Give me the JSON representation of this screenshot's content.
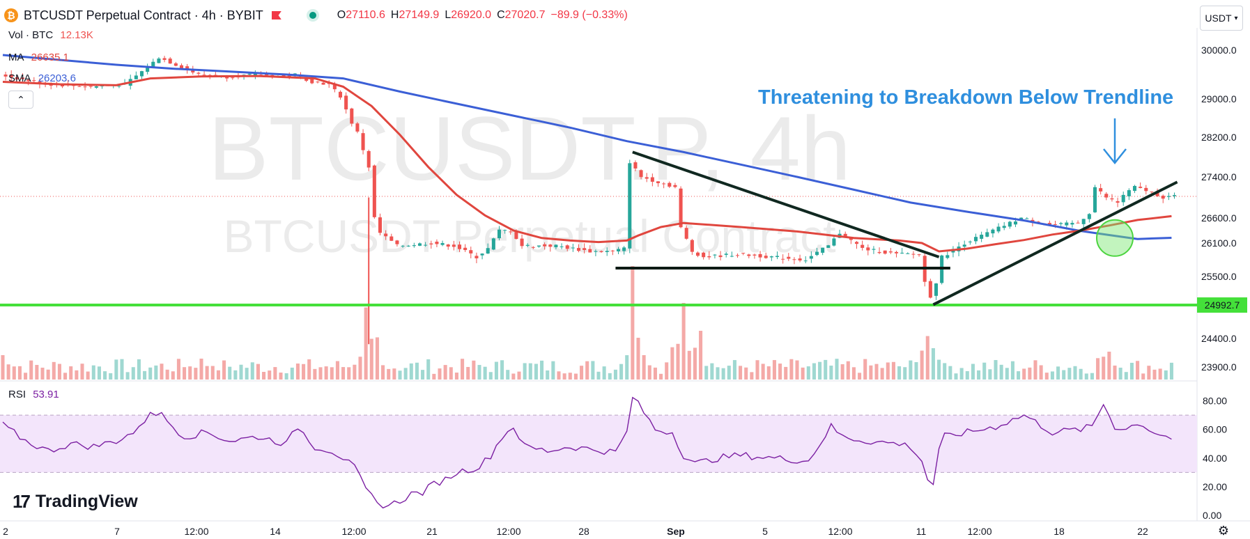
{
  "header": {
    "symbol_icon": "bitcoin-icon",
    "title": "BTCUSDT Perpetual Contract · 4h · BYBIT",
    "ohlc": [
      {
        "k": "O",
        "v": "27110.6"
      },
      {
        "k": "H",
        "v": "27149.9"
      },
      {
        "k": "L",
        "v": "26920.0"
      },
      {
        "k": "C",
        "v": "27020.7"
      },
      {
        "k": "",
        "v": "−89.9 (−0.33%)"
      }
    ]
  },
  "legend": {
    "vol_label": "Vol · BTC",
    "vol_value": "12.13K",
    "ma_label": "MA",
    "ma_value": "26635.1",
    "sma_label": "SMA",
    "sma_value": "26203.6",
    "collapse_icon": "chevron-up-icon"
  },
  "currency_button": "USDT",
  "watermark": {
    "line1": "BTCUSDT.P, 4h",
    "line2": "BTCUSDT Perpetual Contract"
  },
  "annotation": "Threatening to Breakdown Below Trendline",
  "rsi": {
    "label": "RSI",
    "value": "53.91"
  },
  "branding": {
    "logo": "TradingView",
    "mark": "17"
  },
  "settings_icon": "gear-icon",
  "colors": {
    "up": "#26a69a",
    "down": "#ef5350",
    "ma": "#e0463e",
    "sma": "#3b5fd6",
    "support": "#44e03a",
    "rsi": "#7b1fa2",
    "annotation": "#2f8fde",
    "trendline": "#102820"
  },
  "chart_data": {
    "type": "candlestick",
    "price_axis": {
      "min": 23900,
      "max": 30000,
      "ticks": [
        30000.0,
        29000.0,
        28200.0,
        27400.0,
        26600.0,
        26100.0,
        25500.0,
        24400.0,
        23900.0
      ]
    },
    "price_tick_labels": [
      "30000.0",
      "29000.0",
      "28200.0",
      "27400.0",
      "26600.0",
      "26100.0",
      "25500.0",
      "24400.0",
      "23900.0"
    ],
    "x_tick_labels": [
      "2",
      "7",
      "12:00",
      "14",
      "12:00",
      "21",
      "12:00",
      "28",
      "Sep",
      "5",
      "12:00",
      "11",
      "12:00",
      "18",
      "22"
    ],
    "price_path": [
      [
        0,
        29500
      ],
      [
        8,
        29300
      ],
      [
        16,
        29250
      ],
      [
        22,
        29300
      ],
      [
        26,
        29650
      ],
      [
        28,
        29850
      ],
      [
        31,
        29700
      ],
      [
        35,
        29500
      ],
      [
        40,
        29450
      ],
      [
        45,
        29500
      ],
      [
        50,
        29450
      ],
      [
        52,
        29500
      ],
      [
        55,
        29350
      ],
      [
        58,
        29300
      ],
      [
        60,
        29050
      ],
      [
        62,
        28500
      ],
      [
        63,
        28300
      ],
      [
        65,
        27600
      ],
      [
        66,
        26600
      ],
      [
        67,
        26300
      ],
      [
        70,
        26050
      ],
      [
        76,
        26100
      ],
      [
        80,
        26050
      ],
      [
        84,
        25850
      ],
      [
        86,
        26000
      ],
      [
        88,
        26350
      ],
      [
        90,
        26350
      ],
      [
        92,
        26050
      ],
      [
        98,
        26050
      ],
      [
        104,
        25950
      ],
      [
        108,
        25950
      ],
      [
        110,
        26000
      ],
      [
        111,
        27700
      ],
      [
        113,
        27400
      ],
      [
        116,
        27300
      ],
      [
        119,
        27200
      ],
      [
        120,
        26400
      ],
      [
        122,
        25950
      ],
      [
        124,
        25850
      ],
      [
        130,
        25900
      ],
      [
        136,
        25850
      ],
      [
        142,
        25800
      ],
      [
        146,
        26050
      ],
      [
        148,
        26300
      ],
      [
        152,
        26000
      ],
      [
        158,
        25900
      ],
      [
        162,
        25900
      ],
      [
        163,
        25400
      ],
      [
        164,
        25150
      ],
      [
        165,
        25400
      ],
      [
        166,
        25850
      ],
      [
        170,
        26100
      ],
      [
        175,
        26350
      ],
      [
        180,
        26600
      ],
      [
        185,
        26450
      ],
      [
        190,
        26500
      ],
      [
        192,
        26700
      ],
      [
        193,
        27200
      ],
      [
        195,
        27000
      ],
      [
        197,
        26900
      ],
      [
        198,
        27050
      ],
      [
        200,
        27200
      ],
      [
        203,
        27100
      ],
      [
        205,
        27000
      ],
      [
        206,
        27020
      ]
    ],
    "series": [
      {
        "name": "MA",
        "values": [
          [
            0,
            29350
          ],
          [
            10,
            29300
          ],
          [
            20,
            29280
          ],
          [
            26,
            29420
          ],
          [
            35,
            29460
          ],
          [
            45,
            29470
          ],
          [
            55,
            29420
          ],
          [
            60,
            29250
          ],
          [
            65,
            28850
          ],
          [
            70,
            28250
          ],
          [
            75,
            27600
          ],
          [
            80,
            27050
          ],
          [
            85,
            26650
          ],
          [
            90,
            26350
          ],
          [
            95,
            26200
          ],
          [
            100,
            26150
          ],
          [
            105,
            26120
          ],
          [
            110,
            26150
          ],
          [
            112,
            26250
          ],
          [
            116,
            26420
          ],
          [
            120,
            26500
          ],
          [
            130,
            26420
          ],
          [
            140,
            26330
          ],
          [
            150,
            26200
          ],
          [
            158,
            26150
          ],
          [
            162,
            26100
          ],
          [
            165,
            25950
          ],
          [
            170,
            26000
          ],
          [
            175,
            26080
          ],
          [
            180,
            26160
          ],
          [
            185,
            26270
          ],
          [
            190,
            26350
          ],
          [
            195,
            26450
          ],
          [
            200,
            26560
          ],
          [
            206,
            26635
          ]
        ]
      },
      {
        "name": "SMA",
        "values": [
          [
            0,
            29900
          ],
          [
            10,
            29800
          ],
          [
            20,
            29700
          ],
          [
            30,
            29620
          ],
          [
            40,
            29560
          ],
          [
            50,
            29500
          ],
          [
            60,
            29420
          ],
          [
            70,
            29150
          ],
          [
            80,
            28900
          ],
          [
            90,
            28650
          ],
          [
            100,
            28400
          ],
          [
            110,
            28120
          ],
          [
            120,
            27900
          ],
          [
            130,
            27650
          ],
          [
            140,
            27400
          ],
          [
            150,
            27150
          ],
          [
            160,
            26900
          ],
          [
            170,
            26720
          ],
          [
            180,
            26550
          ],
          [
            190,
            26340
          ],
          [
            195,
            26260
          ],
          [
            200,
            26180
          ],
          [
            206,
            26204
          ]
        ]
      }
    ],
    "volume_peaks": [
      [
        0,
        35
      ],
      [
        35,
        30
      ],
      [
        64,
        90
      ],
      [
        65,
        45
      ],
      [
        111,
        160
      ],
      [
        112,
        60
      ],
      [
        120,
        110
      ],
      [
        123,
        70
      ],
      [
        163,
        60
      ],
      [
        164,
        45
      ],
      [
        195,
        40
      ]
    ],
    "support_level": {
      "value": 24992.7,
      "label": "24992.7"
    },
    "descending_triangle": {
      "upper": [
        [
          111,
          27900
        ],
        [
          165,
          25850
        ]
      ],
      "base": [
        [
          108,
          25650
        ],
        [
          167,
          25650
        ]
      ]
    },
    "ascending_trendline": [
      [
        164,
        25000
      ],
      [
        207,
        27300
      ]
    ],
    "highlight_circle": {
      "x": 196,
      "y": 26200
    },
    "rsi": {
      "ylim": [
        0,
        90
      ],
      "ticks": [
        80.0,
        60.0,
        40.0,
        20.0,
        0.0
      ],
      "tick_labels": [
        "80.00",
        "60.00",
        "40.00",
        "20.00",
        "0.00"
      ],
      "band": [
        30,
        70
      ],
      "values": [
        [
          0,
          63
        ],
        [
          4,
          52
        ],
        [
          8,
          45
        ],
        [
          12,
          50
        ],
        [
          16,
          48
        ],
        [
          20,
          52
        ],
        [
          24,
          60
        ],
        [
          26,
          73
        ],
        [
          28,
          70
        ],
        [
          30,
          62
        ],
        [
          32,
          55
        ],
        [
          36,
          58
        ],
        [
          40,
          52
        ],
        [
          45,
          55
        ],
        [
          50,
          50
        ],
        [
          52,
          62
        ],
        [
          55,
          48
        ],
        [
          58,
          45
        ],
        [
          60,
          40
        ],
        [
          62,
          33
        ],
        [
          64,
          18
        ],
        [
          66,
          8
        ],
        [
          68,
          7
        ],
        [
          70,
          10
        ],
        [
          72,
          15
        ],
        [
          74,
          16
        ],
        [
          76,
          22
        ],
        [
          78,
          25
        ],
        [
          80,
          30
        ],
        [
          84,
          34
        ],
        [
          86,
          42
        ],
        [
          88,
          55
        ],
        [
          90,
          62
        ],
        [
          92,
          48
        ],
        [
          96,
          45
        ],
        [
          100,
          48
        ],
        [
          104,
          46
        ],
        [
          108,
          44
        ],
        [
          110,
          58
        ],
        [
          111,
          83
        ],
        [
          113,
          72
        ],
        [
          115,
          60
        ],
        [
          118,
          58
        ],
        [
          120,
          42
        ],
        [
          122,
          36
        ],
        [
          126,
          40
        ],
        [
          130,
          42
        ],
        [
          136,
          40
        ],
        [
          142,
          38
        ],
        [
          146,
          62
        ],
        [
          148,
          55
        ],
        [
          152,
          52
        ],
        [
          158,
          50
        ],
        [
          160,
          48
        ],
        [
          162,
          38
        ],
        [
          163,
          25
        ],
        [
          164,
          22
        ],
        [
          165,
          45
        ],
        [
          166,
          55
        ],
        [
          170,
          58
        ],
        [
          175,
          62
        ],
        [
          180,
          70
        ],
        [
          185,
          58
        ],
        [
          190,
          60
        ],
        [
          192,
          62
        ],
        [
          194,
          78
        ],
        [
          196,
          62
        ],
        [
          198,
          60
        ],
        [
          200,
          65
        ],
        [
          203,
          58
        ],
        [
          205,
          55
        ],
        [
          206,
          54
        ]
      ]
    }
  }
}
